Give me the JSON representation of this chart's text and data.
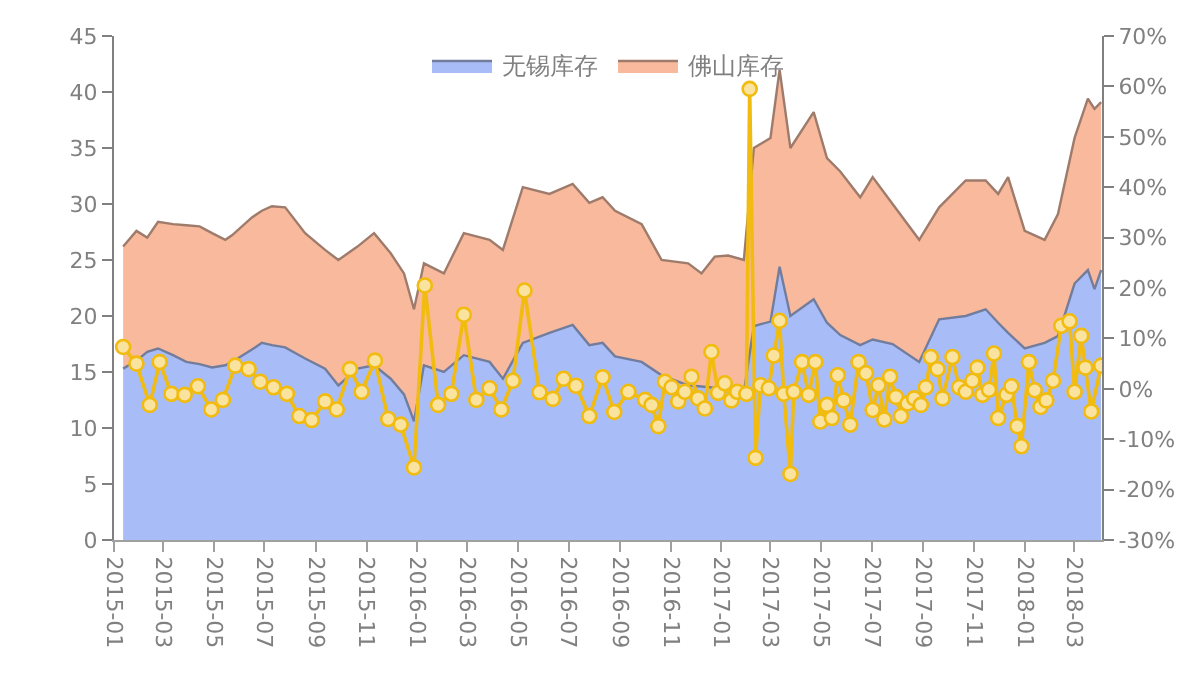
{
  "chart_data": {
    "type": "area",
    "stacked": true,
    "legend": "top",
    "x": [
      "2015-01-12",
      "2015-01-28",
      "2015-02-10",
      "2015-02-23",
      "2015-03-13",
      "2015-03-29",
      "2015-04-14",
      "2015-04-29",
      "2015-05-15",
      "2015-05-23",
      "2015-06-16",
      "2015-06-28",
      "2015-07-10",
      "2015-07-26",
      "2015-08-19",
      "2015-09-12",
      "2015-09-28",
      "2015-10-21",
      "2015-11-10",
      "2015-11-30",
      "2015-12-16",
      "2015-12-28",
      "2016-01-09",
      "2016-02-02",
      "2016-02-26",
      "2016-03-28",
      "2016-04-13",
      "2016-05-07",
      "2016-06-08",
      "2016-07-06",
      "2016-07-26",
      "2016-08-11",
      "2016-08-26",
      "2016-09-27",
      "2016-10-21",
      "2016-11-22",
      "2016-12-08",
      "2016-12-24",
      "2017-01-09",
      "2017-01-28",
      "2017-02-09",
      "2017-03-01",
      "2017-03-12",
      "2017-03-25",
      "2017-04-22",
      "2017-05-08",
      "2017-05-24",
      "2017-06-17",
      "2017-07-02",
      "2017-07-26",
      "2017-08-27",
      "2017-09-20",
      "2017-10-22",
      "2017-11-15",
      "2017-11-30",
      "2017-12-12",
      "2018-01-01",
      "2018-01-25",
      "2018-02-10",
      "2018-03-02",
      "2018-03-18",
      "2018-03-26",
      "2018-04-03"
    ],
    "xlim": [
      "2015-01-01",
      "2018-04-04"
    ],
    "xticks": [
      "2015-01",
      "2015-03",
      "2015-05",
      "2015-07",
      "2015-09",
      "2015-11",
      "2016-01",
      "2016-03",
      "2016-05",
      "2016-07",
      "2016-09",
      "2016-11",
      "2017-01",
      "2017-03",
      "2017-05",
      "2017-07",
      "2017-09",
      "2017-11",
      "2018-01",
      "2018-03"
    ],
    "ylim": [
      0,
      45
    ],
    "yticks": [
      0,
      5,
      10,
      15,
      20,
      25,
      30,
      35,
      40,
      45
    ],
    "y2lim": [
      -30,
      70
    ],
    "y2ticks": [
      {
        "value": -30,
        "label": "-30%"
      },
      {
        "value": -20,
        "label": "-20%"
      },
      {
        "value": -10,
        "label": "-10%"
      },
      {
        "value": 0,
        "label": "0%"
      },
      {
        "value": 10,
        "label": "10%"
      },
      {
        "value": 20,
        "label": "20%"
      },
      {
        "value": 30,
        "label": "30%"
      },
      {
        "value": 40,
        "label": "40%"
      },
      {
        "value": 50,
        "label": "50%"
      },
      {
        "value": 60,
        "label": "60%"
      },
      {
        "value": 70,
        "label": "70%"
      }
    ],
    "series": [
      {
        "name": "无锡库存",
        "color": "#a8bdf7",
        "values": [
          15.3,
          16.0,
          16.8,
          17.1,
          16.5,
          15.9,
          15.7,
          15.4,
          15.6,
          15.9,
          17.0,
          17.6,
          17.4,
          17.2,
          16.2,
          15.3,
          13.8,
          15.3,
          15.6,
          14.4,
          13.0,
          10.6,
          15.6,
          15.0,
          16.5,
          15.9,
          14.4,
          17.6,
          18.5,
          19.2,
          17.4,
          17.6,
          16.4,
          15.9,
          14.7,
          13.8,
          13.7,
          13.6,
          13.5,
          13.2,
          19.1,
          19.5,
          24.4,
          20.0,
          21.5,
          19.4,
          18.3,
          17.4,
          17.9,
          17.5,
          15.9,
          19.7,
          20.0,
          20.6,
          19.4,
          18.5,
          17.1,
          17.6,
          18.2,
          22.9,
          24.1,
          22.4,
          24.1
        ]
      },
      {
        "name": "佛山库存",
        "color": "#f8b99c",
        "values": [
          10.9,
          11.6,
          10.2,
          11.3,
          11.7,
          12.2,
          12.3,
          12.0,
          11.2,
          11.3,
          11.8,
          11.8,
          12.4,
          12.5,
          11.2,
          10.6,
          11.2,
          10.9,
          11.8,
          11.2,
          10.8,
          10.0,
          9.1,
          8.8,
          10.9,
          10.9,
          11.5,
          13.9,
          12.4,
          12.6,
          12.7,
          13.0,
          13.0,
          12.3,
          10.3,
          10.9,
          10.1,
          11.7,
          11.9,
          11.8,
          15.9,
          16.4,
          17.6,
          15.0,
          16.7,
          14.7,
          14.6,
          13.2,
          14.5,
          12.5,
          10.9,
          10.0,
          12.1,
          11.5,
          11.5,
          13.9,
          10.5,
          9.2,
          10.9,
          13.0,
          15.3,
          16.1,
          15.0
        ]
      },
      {
        "type": "line",
        "axis": "y2",
        "color": "#f2bb0f",
        "marker": "circle",
        "line_style": "solid",
        "x": [
          "2015-01-12",
          "2015-01-28",
          "2015-02-13",
          "2015-02-25",
          "2015-03-11",
          "2015-03-27",
          "2015-04-12",
          "2015-04-28",
          "2015-05-12",
          "2015-05-27",
          "2015-06-12",
          "2015-06-26",
          "2015-07-12",
          "2015-07-28",
          "2015-08-12",
          "2015-08-27",
          "2015-09-12",
          "2015-09-26",
          "2015-10-12",
          "2015-10-26",
          "2015-11-11",
          "2015-11-27",
          "2015-12-12",
          "2015-12-28",
          "2016-01-10",
          "2016-01-26",
          "2016-02-11",
          "2016-02-26",
          "2016-03-12",
          "2016-03-28",
          "2016-04-11",
          "2016-04-25",
          "2016-05-09",
          "2016-05-27",
          "2016-06-12",
          "2016-06-25",
          "2016-07-10",
          "2016-07-26",
          "2016-08-11",
          "2016-08-25",
          "2016-09-11",
          "2016-10-01",
          "2016-10-09",
          "2016-10-17",
          "2016-10-25",
          "2016-11-02",
          "2016-11-10",
          "2016-11-18",
          "2016-11-26",
          "2016-12-04",
          "2016-12-12",
          "2016-12-20",
          "2016-12-28",
          "2017-01-05",
          "2017-01-13",
          "2017-01-20",
          "2017-01-31",
          "2017-02-04",
          "2017-02-11",
          "2017-02-17",
          "2017-02-27",
          "2017-03-05",
          "2017-03-12",
          "2017-03-17",
          "2017-03-25",
          "2017-03-29",
          "2017-04-08",
          "2017-04-16",
          "2017-04-24",
          "2017-04-30",
          "2017-05-08",
          "2017-05-14",
          "2017-05-21",
          "2017-05-28",
          "2017-06-05",
          "2017-06-15",
          "2017-06-24",
          "2017-07-02",
          "2017-07-09",
          "2017-07-16",
          "2017-07-23",
          "2017-07-30",
          "2017-08-05",
          "2017-08-13",
          "2017-08-21",
          "2017-08-29",
          "2017-09-04",
          "2017-09-10",
          "2017-09-18",
          "2017-09-24",
          "2017-10-06",
          "2017-10-14",
          "2017-10-22",
          "2017-10-30",
          "2017-11-05",
          "2017-11-11",
          "2017-11-19",
          "2017-11-25",
          "2017-11-30",
          "2017-12-10",
          "2017-12-16",
          "2017-12-23",
          "2017-12-28",
          "2018-01-06",
          "2018-01-13",
          "2018-01-20",
          "2018-01-27",
          "2018-02-04",
          "2018-02-14",
          "2018-02-24",
          "2018-03-02",
          "2018-03-10",
          "2018-03-15",
          "2018-03-22",
          "2018-04-03"
        ],
        "values": [
          8.3,
          5,
          -3.2,
          5.3,
          -1,
          -1.2,
          0.5,
          -4.1,
          -2.2,
          4.6,
          3.9,
          1.4,
          0.3,
          -1,
          -5.4,
          -6.2,
          -2.5,
          -4.1,
          3.9,
          -0.6,
          5.6,
          -6,
          -7.1,
          -15.6,
          20.5,
          -3.2,
          -1,
          14.7,
          -2.2,
          0.1,
          -4.1,
          1.6,
          19.5,
          -0.7,
          -2,
          2,
          0.6,
          -5.4,
          2.3,
          -4.6,
          -0.6,
          -2.2,
          -3.2,
          -7.4,
          1.4,
          0.3,
          -2.5,
          -0.6,
          2.4,
          -1.9,
          -3.9,
          7.3,
          -0.8,
          1.1,
          -2.3,
          -0.6,
          -1,
          59.5,
          -13.7,
          0.7,
          0.1,
          6.6,
          13.5,
          -1,
          -16.9,
          -0.6,
          5.3,
          -1.2,
          5.3,
          -6.5,
          -3.2,
          -5.8,
          2.7,
          -2.3,
          -7.1,
          5.3,
          3.1,
          -4.2,
          0.7,
          -6.1,
          2.4,
          -1.6,
          -5.4,
          -2.9,
          -1.9,
          -3.2,
          0.3,
          6.3,
          3.9,
          -1.9,
          6.3,
          0.3,
          -0.6,
          1.6,
          4.2,
          -1.2,
          -0.2,
          7,
          -5.8,
          -1.2,
          0.5,
          -7.4,
          -11.4,
          5.3,
          -0.3,
          -3.6,
          -2.3,
          1.6,
          12.5,
          13.4,
          -0.6,
          10.5,
          4.2,
          -4.5,
          4.6
        ]
      }
    ]
  }
}
